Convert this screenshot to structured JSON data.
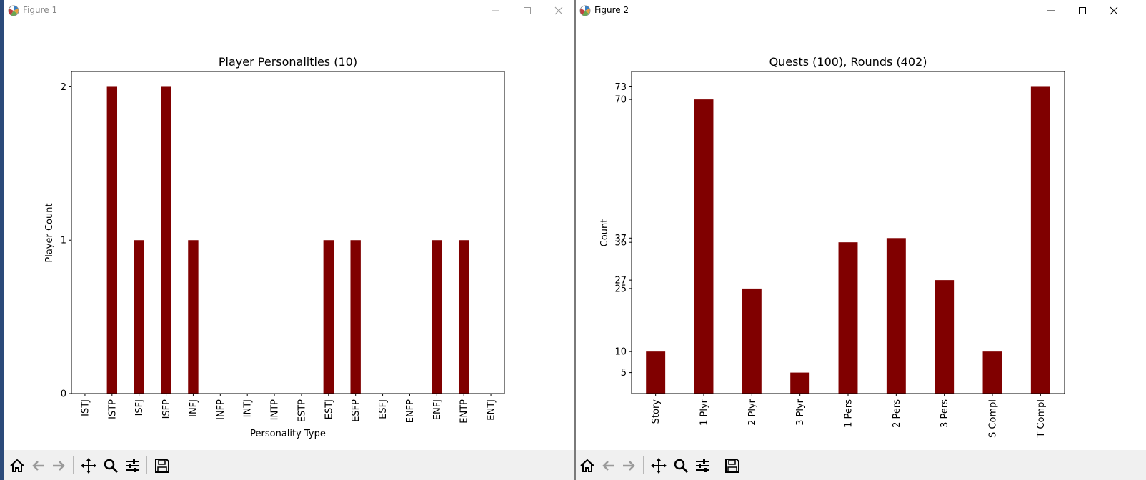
{
  "windows": [
    {
      "title": "Figure 1",
      "chart_data": {
        "type": "bar",
        "title": "Player Personalities (10)",
        "xlabel": "Personality Type",
        "ylabel": "Player Count",
        "categories": [
          "ISTJ",
          "ISTP",
          "ISFJ",
          "ISFP",
          "INFJ",
          "INFP",
          "INTJ",
          "INTP",
          "ESTP",
          "ESTJ",
          "ESFP",
          "ESFJ",
          "ENFP",
          "ENFJ",
          "ENTP",
          "ENTJ"
        ],
        "values": [
          0,
          2,
          1,
          2,
          1,
          0,
          0,
          0,
          0,
          1,
          1,
          0,
          0,
          1,
          1,
          0
        ],
        "yticks": [
          0,
          1,
          2
        ],
        "ylim": [
          0,
          2.1
        ],
        "bar_color": "#800000"
      }
    },
    {
      "title": "Figure 2",
      "chart_data": {
        "type": "bar",
        "title": "Quests (100), Rounds (402)",
        "xlabel": "",
        "ylabel": "Count",
        "categories": [
          "Story",
          "1 Plyr",
          "2 Plyr",
          "3 Plyr",
          "1 Pers",
          "2 Pers",
          "3 Pers",
          "S Compl",
          "T Compl"
        ],
        "values": [
          10,
          70,
          25,
          5,
          36,
          37,
          27,
          10,
          73
        ],
        "yticks": [
          5,
          10,
          25,
          27,
          36,
          37,
          70,
          73
        ],
        "ylim": [
          0,
          76.65
        ],
        "bar_color": "#800000"
      }
    }
  ],
  "toolbar": {
    "home": "home-icon",
    "back": "arrow-left-icon",
    "forward": "arrow-right-icon",
    "pan": "move-icon",
    "zoom": "magnifier-icon",
    "configure": "sliders-icon",
    "save": "save-icon"
  },
  "window_controls": [
    "minimize-icon",
    "maximize-icon",
    "close-icon"
  ]
}
